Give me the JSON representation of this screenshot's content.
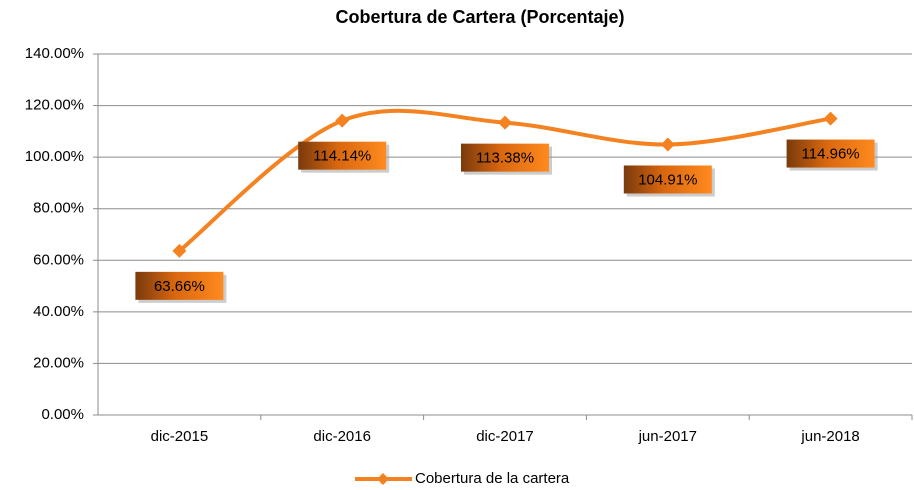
{
  "chart_data": {
    "type": "line",
    "title": "Cobertura de Cartera (Porcentaje)",
    "categories": [
      "dic-2015",
      "dic-2016",
      "dic-2017",
      "jun-2017",
      "jun-2018"
    ],
    "series": [
      {
        "name": "Cobertura de la cartera",
        "color": "#f58220",
        "values": [
          63.66,
          114.14,
          113.38,
          104.91,
          114.96
        ],
        "value_labels": [
          "63.66%",
          "114.14%",
          "113.38%",
          "104.91%",
          "114.96%"
        ]
      }
    ],
    "ylim": [
      0,
      140
    ],
    "yticks": [
      {
        "value": 0,
        "label": "0.00%"
      },
      {
        "value": 20,
        "label": "20.00%"
      },
      {
        "value": 40,
        "label": "40.00%"
      },
      {
        "value": 60,
        "label": "60.00%"
      },
      {
        "value": 80,
        "label": "80.00%"
      },
      {
        "value": 100,
        "label": "100.00%"
      },
      {
        "value": 120,
        "label": "120.00%"
      },
      {
        "value": 140,
        "label": "140.00%"
      }
    ],
    "grid": true,
    "legend": "bottom",
    "smooth": true
  }
}
